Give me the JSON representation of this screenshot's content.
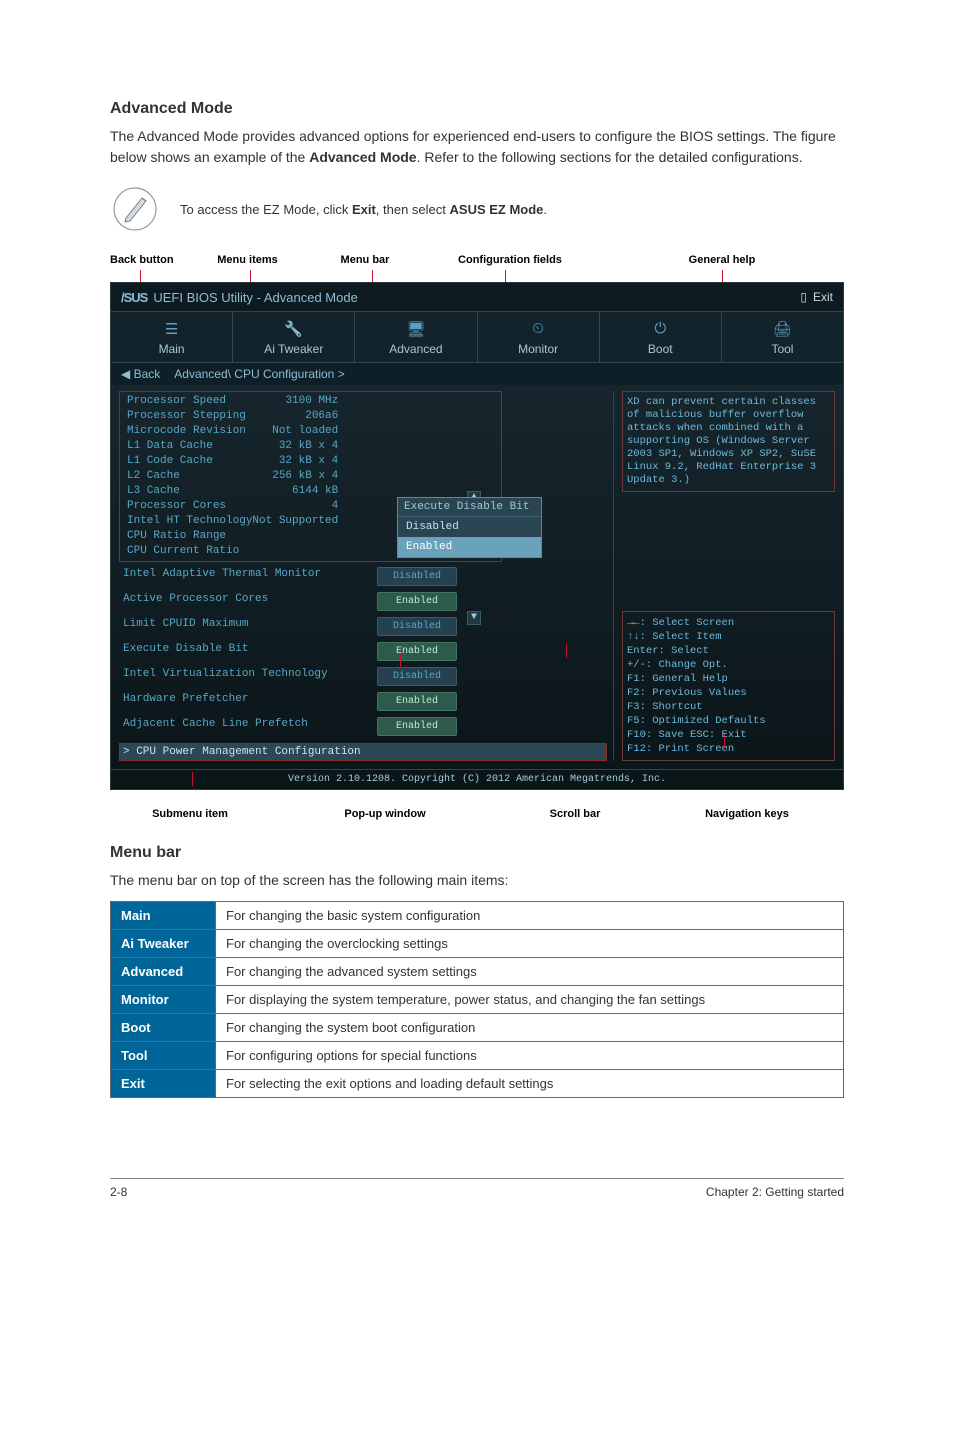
{
  "heading_advanced": "Advanced Mode",
  "intro_p1": "The Advanced Mode provides advanced options for experienced end-users to configure the BIOS settings. The figure below shows an example of the ",
  "intro_bold": "Advanced Mode",
  "intro_p2": ". Refer to the following sections for the detailed configurations.",
  "note_pre": "To access the EZ Mode, click ",
  "note_b1": "Exit",
  "note_mid": ", then select ",
  "note_b2": "ASUS EZ Mode",
  "note_post": ".",
  "top_labels": {
    "back_button": "Back button",
    "menu_items": "Menu items",
    "menu_bar": "Menu bar",
    "config_fields": "Configuration fields",
    "general_help": "General help"
  },
  "bios": {
    "title": "UEFI BIOS Utility - Advanced Mode",
    "exit": "Exit",
    "tabs": {
      "main": "Main",
      "ai_tweaker": "Ai Tweaker",
      "advanced": "Advanced",
      "monitor": "Monitor",
      "boot": "Boot",
      "tool": "Tool"
    },
    "back": "Back",
    "breadcrumb": "Advanced\\ CPU Configuration >",
    "params": [
      {
        "k": "Processor Speed",
        "v": "3100 MHz"
      },
      {
        "k": "Processor Stepping",
        "v": "206a6"
      },
      {
        "k": "Microcode Revision",
        "v": "Not loaded"
      },
      {
        "k": "L1 Data Cache",
        "v": "32 kB x 4"
      },
      {
        "k": "L1 Code Cache",
        "v": "32 kB x 4"
      },
      {
        "k": "L2 Cache",
        "v": "256 kB x 4"
      },
      {
        "k": "L3 Cache",
        "v": "6144 kB"
      },
      {
        "k": "Processor Cores",
        "v": "4"
      },
      {
        "k": "Intel HT Technology",
        "v": "Not Supported"
      },
      {
        "k": "CPU Ratio Range",
        "v": ""
      },
      {
        "k": "CPU Current Ratio",
        "v": ""
      }
    ],
    "configs": [
      {
        "k": "Intel Adaptive Thermal Monitor",
        "v": "Disabled",
        "cls": ""
      },
      {
        "k": "Active Processor Cores",
        "v": "Enabled",
        "cls": "enabled"
      },
      {
        "k": "Limit CPUID Maximum",
        "v": "Disabled",
        "cls": ""
      },
      {
        "k": "Execute Disable Bit",
        "v": "Enabled",
        "cls": "enabled"
      },
      {
        "k": "Intel Virtualization Technology",
        "v": "Disabled",
        "cls": ""
      },
      {
        "k": "Hardware Prefetcher",
        "v": "Enabled",
        "cls": "enabled"
      },
      {
        "k": "Adjacent Cache Line Prefetch",
        "v": "Enabled",
        "cls": "enabled"
      }
    ],
    "submenu": "> CPU Power Management Configuration",
    "popup_title": "Execute Disable Bit",
    "popup_items": [
      {
        "label": "Disabled",
        "sel": false
      },
      {
        "label": "Enabled",
        "sel": true
      }
    ],
    "help_text": "XD can prevent certain classes of malicious buffer overflow attacks when combined with a supporting OS (Windows Server 2003 SP1, Windows XP SP2, SuSE Linux 9.2, RedHat Enterprise 3 Update 3.)",
    "nav_lines": [
      "→←: Select Screen",
      "↑↓: Select Item",
      "Enter: Select",
      "+/-: Change Opt.",
      "F1: General Help",
      "F2: Previous Values",
      "F3: Shortcut",
      "F5: Optimized Defaults",
      "F10: Save  ESC: Exit",
      "F12: Print Screen"
    ],
    "version": "Version 2.10.1208. Copyright (C) 2012 American Megatrends, Inc."
  },
  "bottom_labels": {
    "submenu": "Submenu item",
    "popup": "Pop-up window",
    "scroll": "Scroll bar",
    "navkeys": "Navigation keys"
  },
  "menubar_heading": "Menu bar",
  "menubar_intro": "The menu bar on top of the screen has the following main items:",
  "menubar_rows": [
    {
      "label": "Main",
      "desc": "For changing the basic system configuration"
    },
    {
      "label": "Ai Tweaker",
      "desc": "For changing the overclocking settings"
    },
    {
      "label": "Advanced",
      "desc": "For changing the advanced system settings"
    },
    {
      "label": "Monitor",
      "desc": "For displaying the system temperature, power status, and changing the fan settings"
    },
    {
      "label": "Boot",
      "desc": "For changing the system boot configuration"
    },
    {
      "label": "Tool",
      "desc": "For configuring options for special functions"
    },
    {
      "label": "Exit",
      "desc": "For selecting the exit options and loading default settings"
    }
  ],
  "footer_left": "2-8",
  "footer_right": "Chapter 2: Getting started",
  "asus_brand": "/SUS"
}
